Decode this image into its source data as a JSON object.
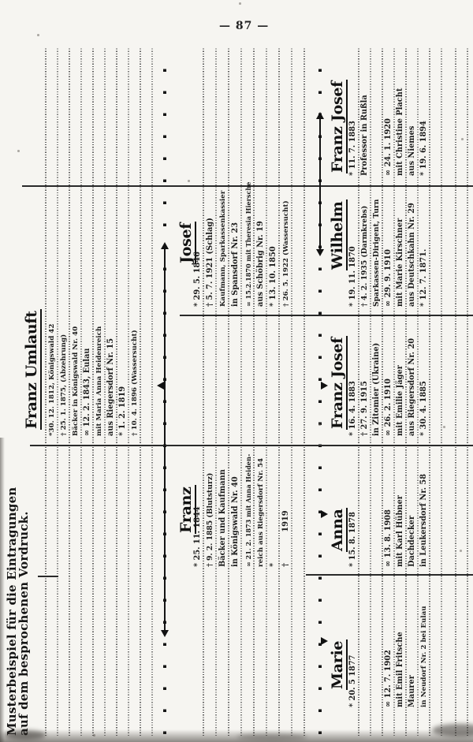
{
  "page": {
    "number": "— 87 —",
    "title_line1": "Musterbeispiel für die Eintragungen",
    "title_line2": "auf dem besprochenen Vordruck."
  },
  "persons": [
    {
      "id": "franz-umlauft",
      "generation": 1,
      "slot": 3,
      "name": "Franz Umlauft",
      "entries": [
        "*30. 12. 1812, Königswald 42",
        "† 25. 1. 1875, (Abzehrung)",
        "Bäcker in Königswald Nr. 40",
        "∞ 12. 2. 1843, Eulau",
        "mit Maria Anna Heidenreich",
        "aus Riegersdorf Nr. 15",
        "* 1. 2. 1819",
        "† 10. 4. 1896 (Wassersucht)"
      ]
    },
    {
      "id": "franz",
      "generation": 2,
      "slot": 2,
      "name": "Franz",
      "entries": [
        "* 25. 11. 1844",
        "† 9. 2. 1885 (Blutsturz)",
        "Bäcker und Kaufmann",
        "in Königswald Nr. 40",
        "∞ 21. 2. 1873 mit Anna Heiden-",
        "reich aus Riegersdorf Nr. 54",
        "*",
        "†    1919"
      ]
    },
    {
      "id": "josef",
      "generation": 2,
      "slot": 4,
      "name": "Josef",
      "entries": [
        "* 29. 5. 1846",
        "† 5. 7. 1921 (Schlag)",
        "Kaufmann, Sparkassenkassier",
        "in Spansdorf Nr. 23",
        "∞ 15.2.1870 mit Theresia Hiersche",
        "aus Schöbrig Nr. 19",
        "* 13. 10. 1850",
        "† 26. 5. 1922 (Wassersucht)"
      ]
    },
    {
      "id": "marie",
      "generation": 3,
      "slot": 1,
      "name": "Marie",
      "entries": [
        "* 20. 5 1877",
        "",
        "",
        "∞ 12. 7. 1902",
        "mit Emil Fritsche",
        "Maurer",
        "in Neudorf Nr. 2 bei Eulau",
        ""
      ]
    },
    {
      "id": "anna",
      "generation": 3,
      "slot": 2,
      "name": "Anna",
      "entries": [
        "* 15. 8. 1878",
        "",
        "",
        "∞ 13. 8. 1908",
        "mit Karl Hübner",
        "Dachdecker",
        "in Leukersdorf Nr. 58",
        ""
      ]
    },
    {
      "id": "franz-josef-1883",
      "generation": 3,
      "slot": 3,
      "name": "Franz Josef",
      "entries": [
        "* 16. 4. 1883",
        "† 27. 9. 1915",
        "in Zitomier (Ukraine)",
        "∞ 26. 2. 1910",
        "mit Emilie Jäger",
        "aus Riegersdorf Nr. 20",
        "* 30. 4. 1885",
        ""
      ]
    },
    {
      "id": "wilhelm",
      "generation": 3,
      "slot": 4,
      "name": "Wilhelm",
      "entries": [
        "* 19. 11. 1870",
        "† 4. 2. 1935 (Darmkrebs)",
        "Sparkassen-Dirigent, Turn",
        "∞ 29. 9. 1910",
        "mit Marie Kirschner",
        "aus Deutschkahn Nr. 29",
        "* 12. 7. 1871.",
        ""
      ]
    },
    {
      "id": "franz-josef-prof",
      "generation": 3,
      "slot": 5,
      "name": "Franz Josef",
      "entries": [
        "* 11. 7. 1883",
        "Professor in Rußla",
        "",
        "∞ 24. 1. 1920",
        "mit Christine Placht",
        "aus Niemes",
        "* 19. 6. 1894",
        ""
      ]
    }
  ]
}
